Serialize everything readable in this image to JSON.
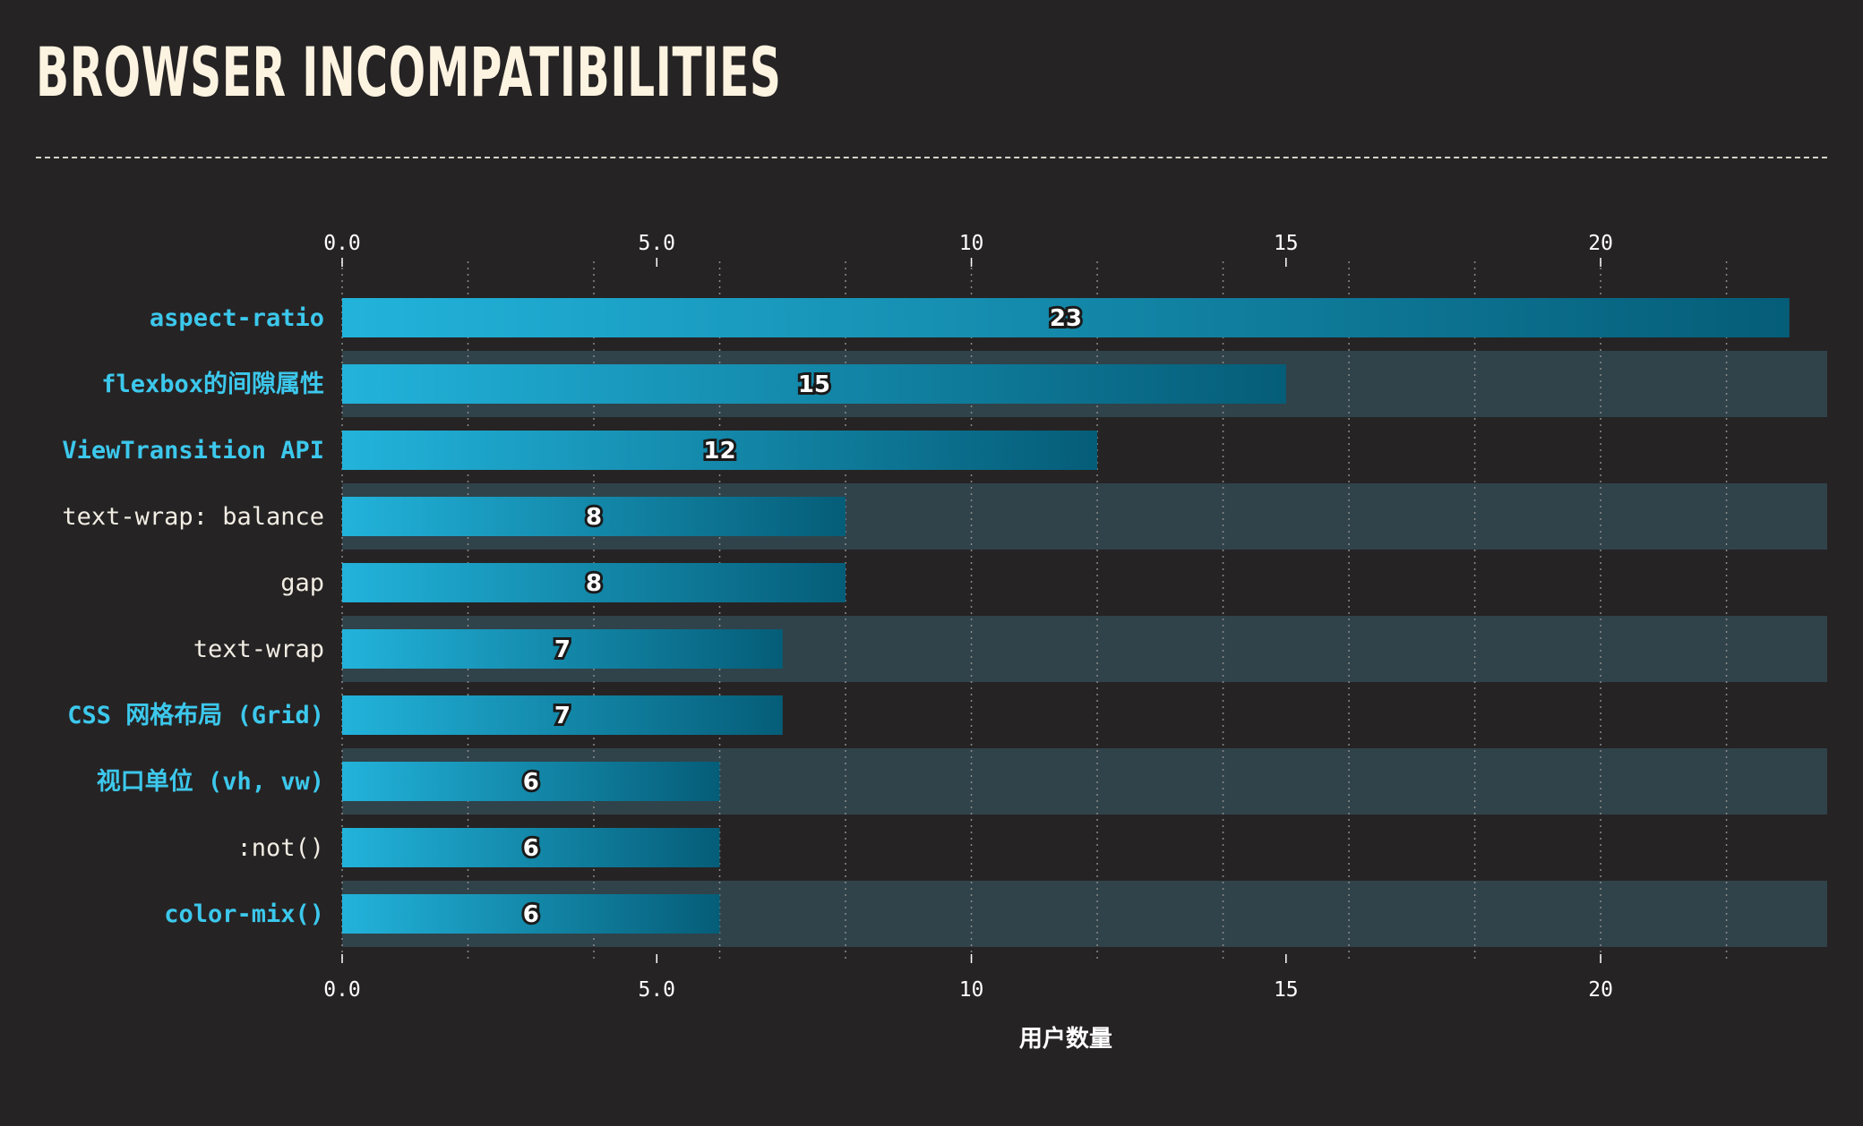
{
  "title": "BROWSER INCOMPATIBILITIES",
  "colors": {
    "background": "#262324",
    "title": "#fdf3e1",
    "row_band": "#30434a",
    "bar_start": "#22b3db",
    "bar_end": "#055d78",
    "highlight_label": "#3cc8ec",
    "normal_label": "#f2ede4",
    "grid": "#8a8a8a"
  },
  "chart_data": {
    "type": "bar",
    "orientation": "horizontal",
    "categories": [
      "aspect-ratio",
      "flexbox的间隙属性",
      "ViewTransition API",
      "text-wrap: balance",
      "gap",
      "text-wrap",
      "CSS 网格布局 (Grid)",
      "视口单位 (vh, vw)",
      ":not()",
      "color-mix()"
    ],
    "values": [
      23,
      15,
      12,
      8,
      8,
      7,
      7,
      6,
      6,
      6
    ],
    "highlighted": [
      true,
      true,
      true,
      false,
      false,
      false,
      true,
      true,
      false,
      true
    ],
    "xlabel": "用户数量",
    "ylabel": "",
    "xlim": [
      0,
      23.6
    ],
    "x_ticks": [
      0,
      5,
      10,
      15,
      20
    ],
    "x_tick_labels": [
      "0.0",
      "5.0",
      "10",
      "15",
      "20"
    ],
    "grid": "vertical dotted, minor step 2",
    "data_labels": "centered on bar"
  }
}
